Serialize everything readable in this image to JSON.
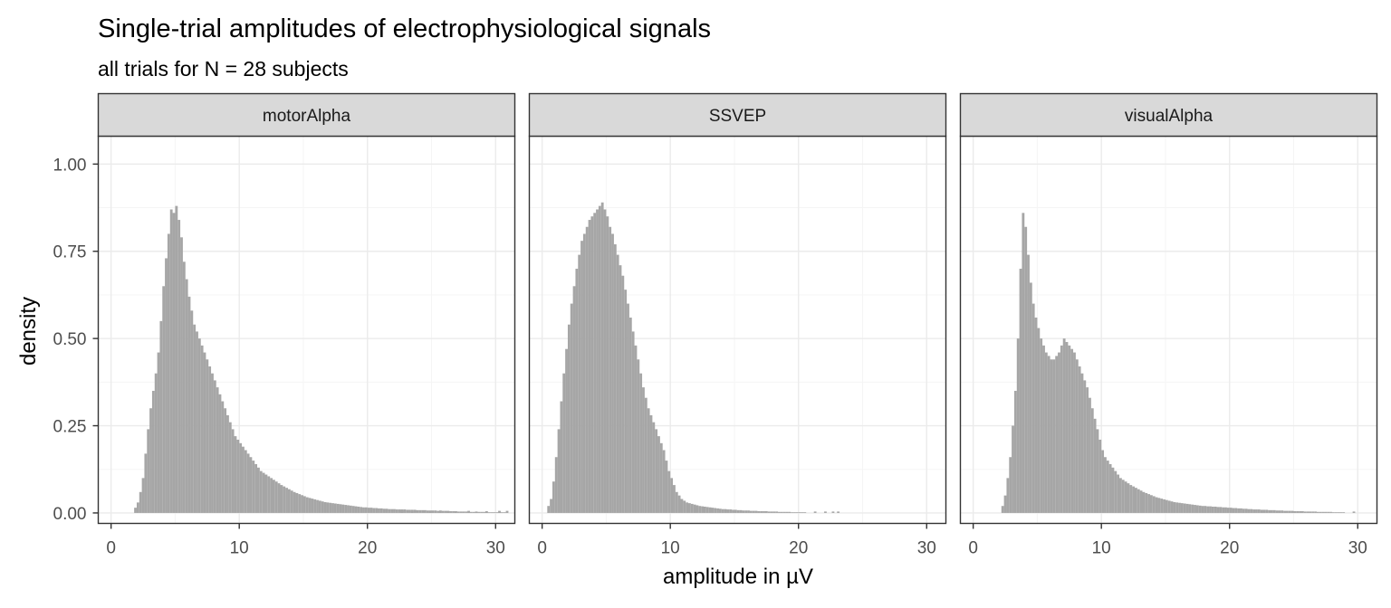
{
  "chart_data": {
    "type": "bar",
    "title": "Single-trial amplitudes of electrophysiological signals",
    "subtitle": "all trials for N = 28 subjects",
    "xlabel": "amplitude in µV",
    "ylabel": "density",
    "xlim": [
      -1,
      31.5
    ],
    "ylim": [
      -0.03,
      1.08
    ],
    "x_ticks": [
      0,
      10,
      20,
      30
    ],
    "y_ticks": [
      0.0,
      0.25,
      0.5,
      0.75,
      1.0
    ],
    "x_tick_labels": [
      "0",
      "10",
      "20",
      "30"
    ],
    "y_tick_labels": [
      "0.00",
      "0.25",
      "0.50",
      "0.75",
      "1.00"
    ],
    "grid": true,
    "facets": [
      "motorAlpha",
      "SSVEP",
      "visualAlpha"
    ],
    "bin_width": 0.2,
    "colors": {
      "bars": "#a6a6a6",
      "strip_fill": "#d9d9d9",
      "panel_border": "#333333",
      "grid_major": "#ebebeb",
      "grid_minor": "#f5f5f5"
    },
    "series": [
      {
        "name": "motorAlpha",
        "x_start": 1.8,
        "values": [
          0.015,
          0.03,
          0.06,
          0.1,
          0.17,
          0.24,
          0.3,
          0.35,
          0.4,
          0.46,
          0.55,
          0.65,
          0.73,
          0.8,
          0.87,
          0.86,
          0.88,
          0.84,
          0.79,
          0.72,
          0.67,
          0.62,
          0.58,
          0.54,
          0.52,
          0.5,
          0.48,
          0.46,
          0.44,
          0.42,
          0.4,
          0.38,
          0.36,
          0.34,
          0.32,
          0.3,
          0.28,
          0.26,
          0.24,
          0.22,
          0.21,
          0.2,
          0.19,
          0.18,
          0.17,
          0.16,
          0.15,
          0.14,
          0.13,
          0.12,
          0.115,
          0.11,
          0.105,
          0.1,
          0.095,
          0.09,
          0.085,
          0.08,
          0.076,
          0.072,
          0.068,
          0.064,
          0.06,
          0.057,
          0.054,
          0.051,
          0.048,
          0.045,
          0.043,
          0.041,
          0.039,
          0.037,
          0.035,
          0.033,
          0.031,
          0.03,
          0.029,
          0.028,
          0.027,
          0.026,
          0.025,
          0.024,
          0.023,
          0.022,
          0.021,
          0.02,
          0.019,
          0.018,
          0.017,
          0.016,
          0.016,
          0.015,
          0.015,
          0.014,
          0.014,
          0.013,
          0.013,
          0.012,
          0.012,
          0.011,
          0.011,
          0.011,
          0.01,
          0.01,
          0.01,
          0.01,
          0.009,
          0.009,
          0.009,
          0.009,
          0.008,
          0.008,
          0.008,
          0.008,
          0.007,
          0.007,
          0.007,
          0.007,
          0.006,
          0.006,
          0.006,
          0.006,
          0.005,
          0.005,
          0.005,
          0.005,
          0.004,
          0.004,
          0.004,
          0.004,
          0.004,
          0.003,
          0.003,
          0.003,
          0.003,
          0.003,
          0.003,
          0.003,
          0.002,
          0.002,
          0.002,
          0.002,
          0.002,
          0.002,
          0.002
        ],
        "spikes": [
          [
            22.6,
            0.006
          ],
          [
            23.4,
            0.006
          ],
          [
            24.8,
            0.006
          ],
          [
            25.6,
            0.007
          ],
          [
            26.2,
            0.006
          ],
          [
            26.8,
            0.005
          ],
          [
            27.8,
            0.006
          ],
          [
            28.4,
            0.004
          ],
          [
            29.2,
            0.005
          ],
          [
            30.2,
            0.006
          ],
          [
            30.8,
            0.006
          ]
        ]
      },
      {
        "name": "SSVEP",
        "x_start": 0.4,
        "values": [
          0.02,
          0.04,
          0.09,
          0.16,
          0.24,
          0.32,
          0.4,
          0.47,
          0.54,
          0.6,
          0.65,
          0.7,
          0.74,
          0.78,
          0.8,
          0.82,
          0.84,
          0.85,
          0.86,
          0.87,
          0.88,
          0.89,
          0.87,
          0.85,
          0.82,
          0.8,
          0.77,
          0.74,
          0.71,
          0.68,
          0.64,
          0.6,
          0.56,
          0.52,
          0.48,
          0.44,
          0.4,
          0.36,
          0.33,
          0.3,
          0.28,
          0.26,
          0.24,
          0.22,
          0.2,
          0.18,
          0.15,
          0.12,
          0.1,
          0.08,
          0.06,
          0.05,
          0.04,
          0.035,
          0.03,
          0.028,
          0.026,
          0.024,
          0.022,
          0.02,
          0.019,
          0.018,
          0.017,
          0.016,
          0.015,
          0.014,
          0.013,
          0.012,
          0.011,
          0.011,
          0.01,
          0.01,
          0.009,
          0.009,
          0.008,
          0.008,
          0.007,
          0.007,
          0.007,
          0.006,
          0.006,
          0.006,
          0.005,
          0.005,
          0.005,
          0.005,
          0.004,
          0.004,
          0.004,
          0.004,
          0.003,
          0.003,
          0.003,
          0.003,
          0.003,
          0.002,
          0.002,
          0.002,
          0.002,
          0.002,
          0.002
        ],
        "spikes": [
          [
            21.2,
            0.004
          ],
          [
            22.0,
            0.004
          ],
          [
            22.6,
            0.004
          ],
          [
            23.0,
            0.004
          ]
        ]
      },
      {
        "name": "visualAlpha",
        "x_start": 2.2,
        "values": [
          0.02,
          0.05,
          0.1,
          0.16,
          0.25,
          0.35,
          0.5,
          0.7,
          0.86,
          0.82,
          0.74,
          0.66,
          0.6,
          0.56,
          0.53,
          0.5,
          0.48,
          0.46,
          0.45,
          0.44,
          0.44,
          0.45,
          0.46,
          0.48,
          0.5,
          0.49,
          0.48,
          0.47,
          0.46,
          0.44,
          0.42,
          0.4,
          0.38,
          0.36,
          0.33,
          0.3,
          0.27,
          0.24,
          0.21,
          0.18,
          0.16,
          0.15,
          0.14,
          0.13,
          0.12,
          0.11,
          0.1,
          0.095,
          0.09,
          0.085,
          0.08,
          0.076,
          0.072,
          0.068,
          0.064,
          0.06,
          0.057,
          0.054,
          0.051,
          0.048,
          0.045,
          0.043,
          0.041,
          0.039,
          0.037,
          0.035,
          0.033,
          0.031,
          0.03,
          0.029,
          0.028,
          0.027,
          0.026,
          0.025,
          0.024,
          0.023,
          0.022,
          0.021,
          0.02,
          0.02,
          0.019,
          0.019,
          0.018,
          0.018,
          0.017,
          0.017,
          0.016,
          0.016,
          0.015,
          0.015,
          0.014,
          0.014,
          0.013,
          0.013,
          0.012,
          0.012,
          0.011,
          0.011,
          0.01,
          0.01,
          0.01,
          0.009,
          0.009,
          0.009,
          0.008,
          0.008,
          0.008,
          0.007,
          0.007,
          0.007,
          0.006,
          0.006,
          0.006,
          0.006,
          0.005,
          0.005,
          0.005,
          0.005,
          0.004,
          0.004,
          0.004,
          0.004,
          0.004,
          0.003,
          0.003,
          0.003,
          0.003,
          0.003,
          0.003,
          0.002,
          0.002,
          0.002,
          0.002,
          0.002
        ],
        "spikes": [
          [
            29.6,
            0.004
          ]
        ]
      }
    ]
  }
}
